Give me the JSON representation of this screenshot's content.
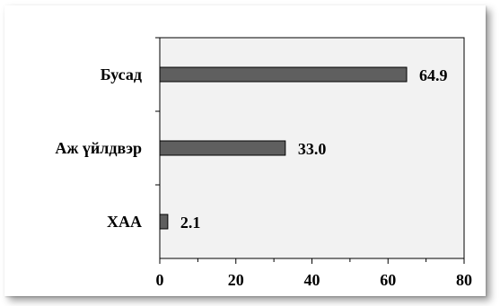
{
  "chart_data": {
    "type": "bar",
    "orientation": "horizontal",
    "categories": [
      "Бусад",
      "Аж үйлдвэр",
      "ХАА"
    ],
    "values": [
      64.9,
      33.0,
      2.1
    ],
    "value_labels": [
      "64.9",
      "33.0",
      "2.1"
    ],
    "title": "",
    "xlabel": "",
    "ylabel": "",
    "xlim": [
      0,
      80
    ],
    "xticks": [
      "0",
      "20",
      "40",
      "60",
      "80"
    ],
    "grid": false,
    "legend": "none",
    "colors": {
      "bar": "#5f5f5f",
      "plot_background": "#f2f2f2",
      "border": "#000000"
    }
  }
}
